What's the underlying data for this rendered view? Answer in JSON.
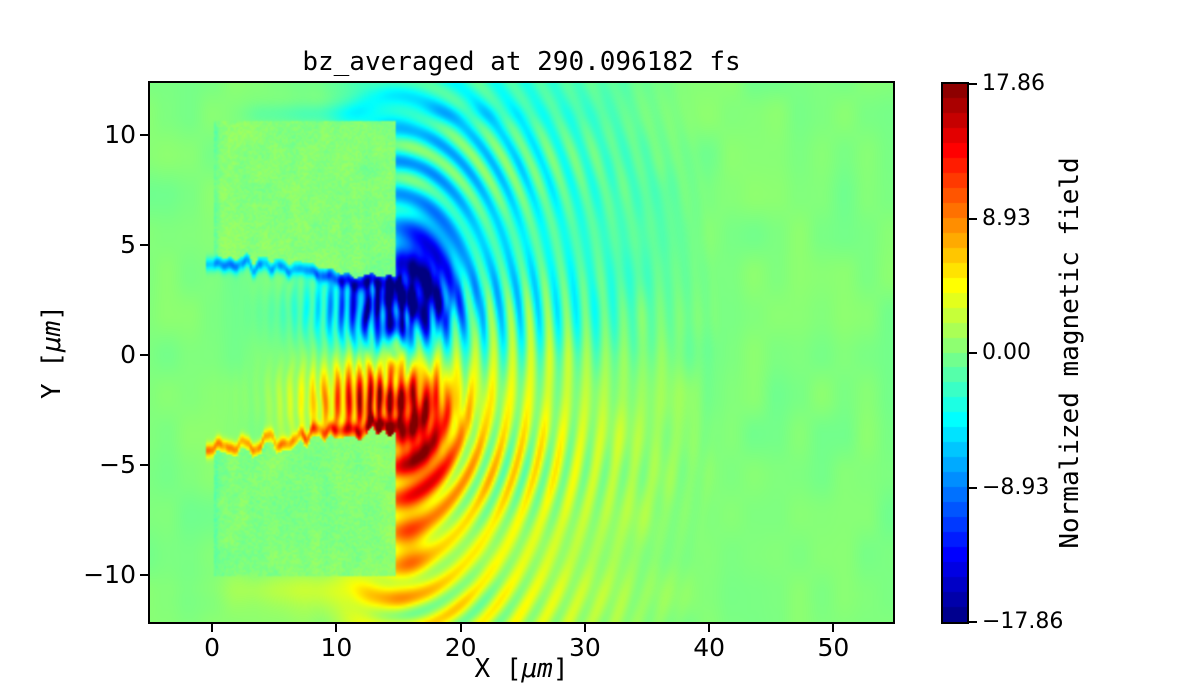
{
  "chart_data": {
    "type": "heatmap",
    "title": "bz_averaged at 290.096182 fs",
    "xlabel": "X [μm]",
    "xlabel_parts": [
      "X [",
      "μm",
      "]"
    ],
    "ylabel": "Y [μm]",
    "ylabel_parts": [
      "Y [",
      "μm",
      "]"
    ],
    "xlim": [
      -5,
      54.8
    ],
    "ylim": [
      -12.13,
      12.37
    ],
    "x_ticks": [
      0,
      10,
      20,
      30,
      40,
      50
    ],
    "x_tick_labels": [
      "0",
      "10",
      "20",
      "30",
      "40",
      "50"
    ],
    "y_ticks": [
      10,
      5,
      0,
      -5,
      -10
    ],
    "y_tick_labels": [
      "10",
      "5",
      "0",
      "−5",
      "−10"
    ],
    "grid": false,
    "colormap": "jet",
    "colorbar": {
      "label": "Normalized magnetic field",
      "vmin": -17.86,
      "vmax": 17.86,
      "ticks": [
        17.86,
        8.93,
        0.0,
        -8.93,
        -17.86
      ],
      "tick_labels": [
        "17.86",
        "8.93",
        "0.00",
        "−8.93",
        "−17.86"
      ],
      "bands": 36,
      "position": "right"
    },
    "features": {
      "description": "2D particle-in-cell simulation snapshot: normalized Bz field of a laser-drilled channel between two target slabs, with an antisymmetric filamentary field pair (negative above axis, positive below) and concentric outgoing wavefronts",
      "background_value": 0,
      "target_blocks": [
        {
          "x": [
            0.2,
            14.72
          ],
          "y": [
            3.9,
            10.68
          ],
          "base_value": 0.35
        },
        {
          "x": [
            0.2,
            14.72
          ],
          "y": [
            -10.0,
            -4.0
          ],
          "base_value": 0.05
        }
      ],
      "eroded_surfaces": [
        {
          "y_at_x0": 4.3,
          "slope": -0.075,
          "sign": -1
        },
        {
          "y_at_x0": -4.35,
          "slope": 0.085,
          "sign": 1
        }
      ],
      "negative_lobe": {
        "x": [
          4,
          21
        ],
        "y": [
          0.3,
          4.5
        ],
        "peak": -15.5
      },
      "positive_lobe": {
        "x": [
          4,
          22
        ],
        "y": [
          -4.5,
          -0.3
        ],
        "peak": 15.5
      },
      "fan_amplitude_up": -4.6,
      "fan_amplitude_down": 3.6,
      "wavefront_center": [
        14.6,
        0
      ],
      "wavefront_max_radius": 27.2,
      "wavelength_um": 1.5
    }
  }
}
